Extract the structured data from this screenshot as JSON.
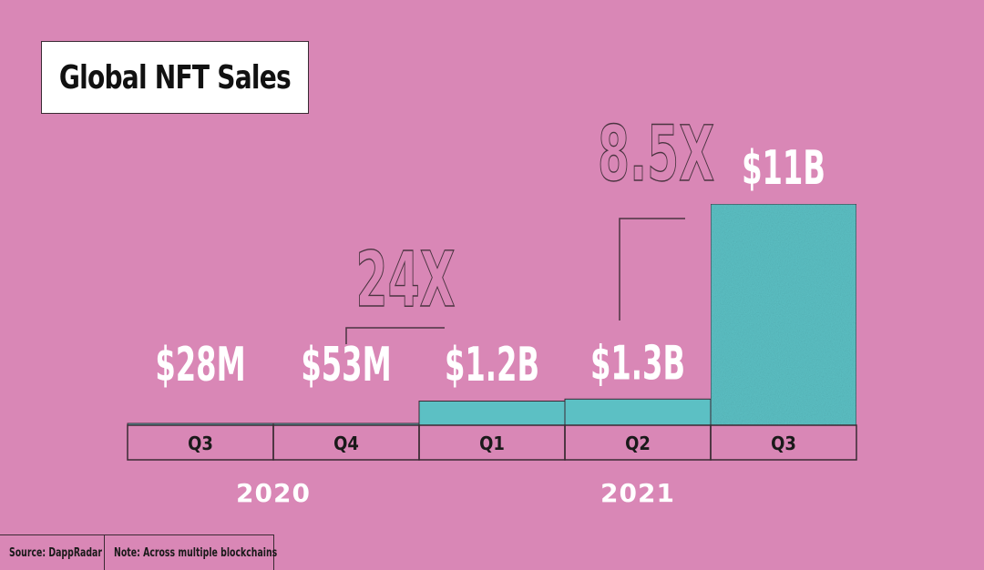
{
  "chart_data": {
    "type": "bar",
    "title": "Global NFT Sales",
    "categories": [
      "Q3",
      "Q4",
      "Q1",
      "Q2",
      "Q3"
    ],
    "years": [
      {
        "label": "2020",
        "categories": [
          0,
          1
        ]
      },
      {
        "label": "2021",
        "categories": [
          2,
          3,
          4
        ]
      }
    ],
    "series": [
      {
        "values": [
          0.028,
          0.053,
          1.2,
          1.3,
          11
        ],
        "data_labels": [
          "$28M",
          "$53M",
          "$1.2B",
          "$1.3B",
          "$11B"
        ]
      }
    ],
    "units": "USD billions",
    "annotations": [
      {
        "text": "24X",
        "from_category": 1,
        "to_category": 2
      },
      {
        "text": "8.5X",
        "from_category": 3,
        "to_category": 4
      }
    ],
    "bar_color": "#5cc0c4",
    "grid": false
  },
  "footer": {
    "source": "Source: DappRadar",
    "note": "Note: Across multiple blockchains"
  },
  "colors": {
    "background": "#d987b6",
    "bar": "#5cc0c4",
    "outline": "#3a2a33",
    "label_white": "#ffffff"
  }
}
